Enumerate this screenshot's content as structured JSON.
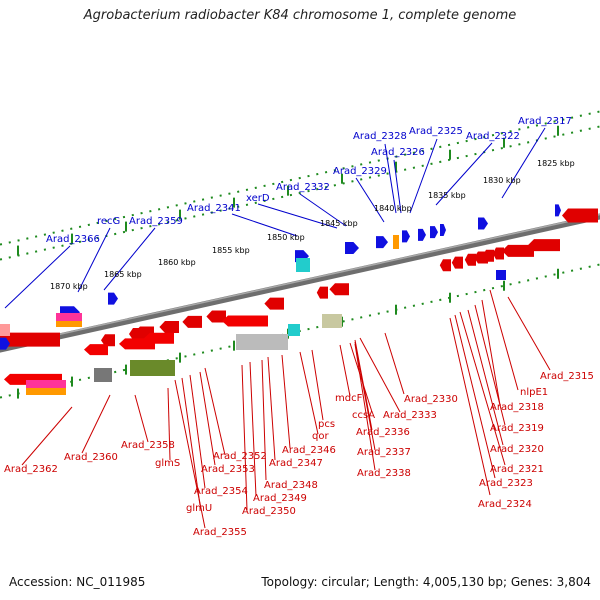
{
  "title": "Agrobacterium radiobacter K84 chromosome 1, complete genome",
  "accession_text": "Accession: NC_011985",
  "summary_text": "Topology: circular; Length: 4,005,130 bp; Genes: 3,804",
  "colors": {
    "forward_label": "#0000cc",
    "reverse_label": "#cc0000",
    "backbone": "#7a7a7a",
    "tick": "#1e8a1e"
  },
  "scale_labels": [
    "1825 kbp",
    "1830 kbp",
    "1835 kbp",
    "1840 kbp",
    "1845 kbp",
    "1850 kbp",
    "1855 kbp",
    "1860 kbp",
    "1865 kbp",
    "1870 kbp"
  ],
  "forward_labels": [
    "Arad_2317",
    "Arad_2325",
    "Arad_2322",
    "Arad_2328",
    "Arad_2326",
    "Arad_2329",
    "Arad_2332",
    "xerD",
    "Arad_2341",
    "Arad_2359",
    "recG",
    "Arad_2366"
  ],
  "reverse_labels": [
    "Arad_2315",
    "nlpE1",
    "Arad_2318",
    "Arad_2319",
    "Arad_2320",
    "Arad_2321",
    "Arad_2323",
    "Arad_2324",
    "Arad_2330",
    "Arad_2333",
    "ccsA",
    "mdcF",
    "Arad_2336",
    "Arad_2337",
    "Arad_2338",
    "pcs",
    "qor",
    "Arad_2346",
    "Arad_2347",
    "Arad_2348",
    "Arad_2349",
    "Arad_2350",
    "Arad_2352",
    "Arad_2353",
    "Arad_2354",
    "glmU",
    "Arad_2355",
    "Arad_2358",
    "glmS",
    "Arad_2360",
    "Arad_2362"
  ]
}
